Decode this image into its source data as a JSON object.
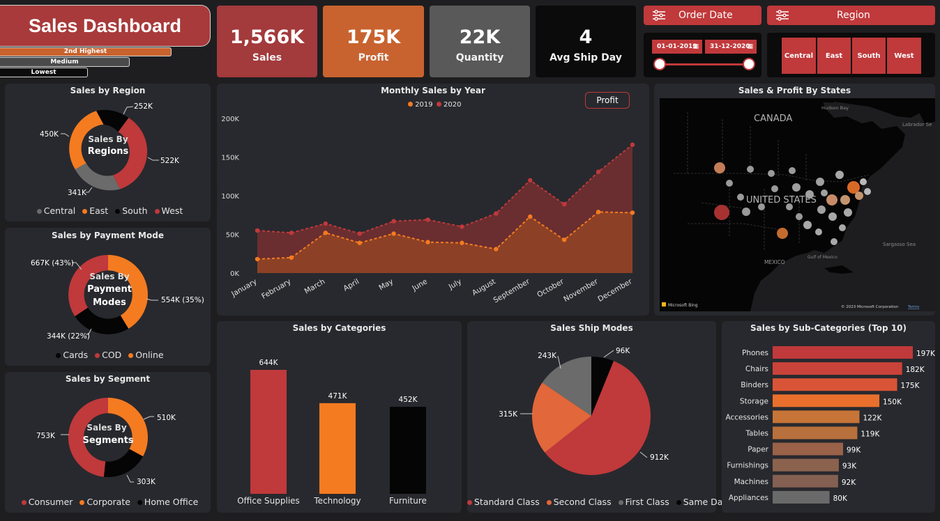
{
  "header": {
    "title": "Sales Dashboard",
    "highest_label": "2nd Highest",
    "medium_label": "Medium",
    "lowest_label": "Lowest"
  },
  "kpis": [
    {
      "value": "1,566K",
      "label": "Sales",
      "color": "#a33a3c"
    },
    {
      "value": "175K",
      "label": "Profit",
      "color": "#c8632f"
    },
    {
      "value": "22K",
      "label": "Quantity",
      "color": "#595959"
    },
    {
      "value": "4",
      "label": "Avg Ship Day",
      "color": "#0b0b0b"
    }
  ],
  "filters": {
    "order_date_label": "Order Date",
    "region_label": "Region",
    "start_date": "01-01-2019",
    "end_date": "31-12-2020",
    "regions": [
      "Central",
      "East",
      "South",
      "West"
    ]
  },
  "colors": {
    "red": "#c0393b",
    "orange": "#f47b20",
    "gray": "#6b6b6b",
    "black": "#050505",
    "panel": "#28292e"
  },
  "region_chart": {
    "title": "Sales by Region",
    "center_line1": "Sales By",
    "center_line2": "Regions",
    "labels": [
      "252K",
      "522K",
      "341K",
      "450K"
    ],
    "legend": [
      "Central",
      "East",
      "South",
      "West"
    ]
  },
  "payment_chart": {
    "title": "Sales by Payment Mode",
    "center_line1": "Sales By",
    "center_line2": "Payment",
    "center_line3": "Modes",
    "labels": [
      "667K (43%)",
      "554K (35%)",
      "344K (22%)"
    ],
    "legend": [
      "Cards",
      "COD",
      "Online"
    ]
  },
  "segment_chart": {
    "title": "Sales by Segment",
    "center_line1": "Sales By",
    "center_line2": "Segments",
    "labels": [
      "510K",
      "753K",
      "303K"
    ],
    "legend": [
      "Consumer",
      "Corporate",
      "Home Office"
    ]
  },
  "monthly_chart": {
    "title": "Monthly Sales by Year",
    "toggle_label": "Profit",
    "legend": [
      "2019",
      "2020"
    ],
    "chart_data": {
      "type": "area",
      "categories": [
        "January",
        "February",
        "March",
        "April",
        "May",
        "June",
        "July",
        "August",
        "September",
        "October",
        "November",
        "December"
      ],
      "series": [
        {
          "name": "2019",
          "values": [
            18,
            20,
            52,
            39,
            51,
            40,
            39,
            31,
            73,
            43,
            79,
            78
          ]
        },
        {
          "name": "2020",
          "values": [
            55,
            52,
            64,
            51,
            67,
            69,
            60,
            77,
            120,
            89,
            131,
            166
          ]
        }
      ],
      "yticks": [
        "0K",
        "50K",
        "100K",
        "150K",
        "200K"
      ],
      "ylim": [
        0,
        200
      ]
    }
  },
  "map": {
    "title": "Sales & Profit By States",
    "labels": {
      "canada": "CANADA",
      "hudson": "Hudson Bay",
      "labrador": "Labrador Se",
      "us": "UNITED STATES",
      "mexico": "MEXICO",
      "gulf": "Gulf of Mexico",
      "sargasso": "Sargasso Sea",
      "bing": "Microsoft Bing",
      "copyright": "© 2023 Microsoft Corporation",
      "terms": "Terms"
    }
  },
  "categories_chart": {
    "title": "Sales by Categories",
    "chart_data": {
      "type": "bar",
      "categories": [
        "Office Supplies",
        "Technology",
        "Furniture"
      ],
      "values": [
        644,
        471,
        452
      ],
      "value_labels": [
        "644K",
        "471K",
        "452K"
      ],
      "colors": [
        "#c0393b",
        "#f47b20",
        "#050505"
      ]
    }
  },
  "shipmode_chart": {
    "title": "Sales Ship Modes",
    "chart_data": {
      "type": "pie",
      "categories": [
        "Standard Class",
        "Second Class",
        "First Class",
        "Same Day"
      ],
      "values": [
        912,
        315,
        243,
        96
      ],
      "value_labels": [
        "912K",
        "315K",
        "243K",
        "96K"
      ],
      "colors": [
        "#c0393b",
        "#e2673a",
        "#6b6b6b",
        "#050505"
      ]
    },
    "legend": [
      "Standard Class",
      "Second Class",
      "First Class",
      "Same Day"
    ]
  },
  "subcat_chart": {
    "title": "Sales by Sub-Categories (Top 10)",
    "chart_data": {
      "type": "bar",
      "categories": [
        "Phones",
        "Chairs",
        "Binders",
        "Storage",
        "Accessories",
        "Tables",
        "Paper",
        "Furnishings",
        "Machines",
        "Appliances"
      ],
      "values": [
        197,
        182,
        175,
        150,
        122,
        119,
        99,
        93,
        92,
        80
      ],
      "value_labels": [
        "197K",
        "182K",
        "175K",
        "150K",
        "122K",
        "119K",
        "99K",
        "93K",
        "92K",
        "80K"
      ],
      "colors": [
        "#c0393b",
        "#c9433a",
        "#d95436",
        "#e8702c",
        "#c77438",
        "#b8703c",
        "#9a6248",
        "#8b624e",
        "#836052",
        "#6a6a6a"
      ]
    }
  }
}
